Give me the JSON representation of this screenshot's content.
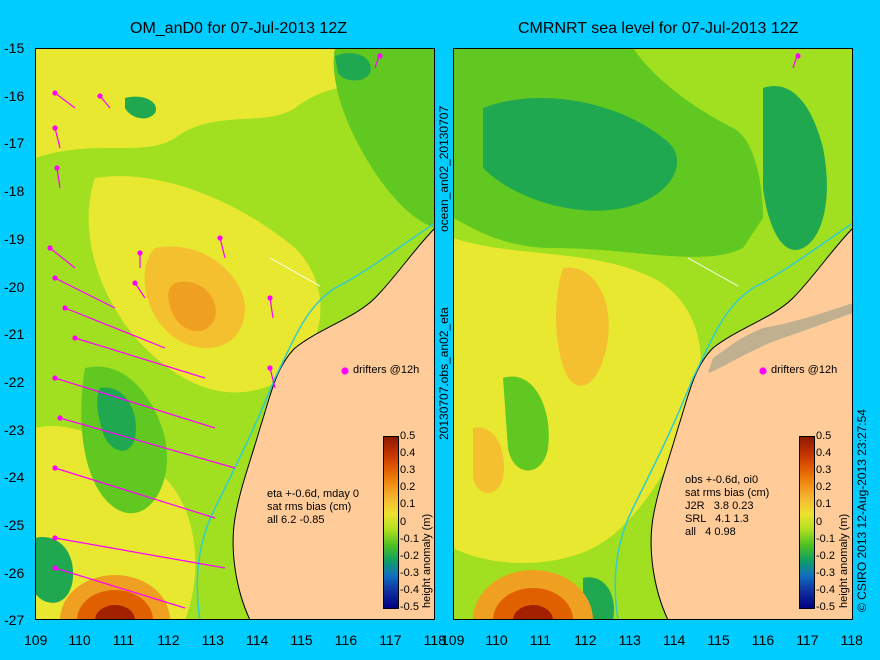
{
  "left_panel": {
    "title": "OM_anD0 for 07-Jul-2013 12Z",
    "side_label": "ocean_an02_20130707",
    "drifters_label": "drifters @12h",
    "stats": [
      "eta +-0.6d, mday 0",
      "sat rms bias (cm)",
      "all 6.2 -0.85"
    ],
    "colorbar_label": "height anomaly (m)"
  },
  "right_panel": {
    "title": "CMRNRT sea level  for 07-Jul-2013 12Z",
    "side_label": "20130707.obs_an02_eta",
    "drifters_label": "drifters @12h",
    "stats": [
      "obs +-0.6d, oi0",
      "sat rms bias (cm)",
      "J2R   3.8 0.23",
      "SRL   4.1 1.3",
      "all   4 0.98"
    ],
    "colorbar_label": "height anomaly (m)"
  },
  "copyright": "© CSIRO 2013   12-Aug-2013 23:27:54",
  "axes": {
    "lat_ticks": [
      "-15",
      "-16",
      "-17",
      "-18",
      "-19",
      "-20",
      "-21",
      "-22",
      "-23",
      "-24",
      "-25",
      "-26",
      "-27"
    ],
    "lon_ticks": [
      "109",
      "110",
      "111",
      "112",
      "113",
      "114",
      "115",
      "116",
      "117",
      "118"
    ]
  },
  "colorbar": {
    "ticks": [
      "0.5",
      "0.4",
      "0.3",
      "0.2",
      "0.1",
      "0",
      "-0.1",
      "-0.2",
      "-0.3",
      "-0.4",
      "-0.5"
    ],
    "colors": [
      "#8b1a00",
      "#c03000",
      "#e05a00",
      "#f08a10",
      "#f5b830",
      "#f0e030",
      "#b0e020",
      "#50c020",
      "#10a060",
      "#1070c0",
      "#1030a0",
      "#000080"
    ]
  },
  "colors": {
    "background": "#00ccff",
    "land": "#ffcc99",
    "coast_line": "#000000",
    "drifter": "#ff00ff",
    "isobath": "#33cccc"
  }
}
